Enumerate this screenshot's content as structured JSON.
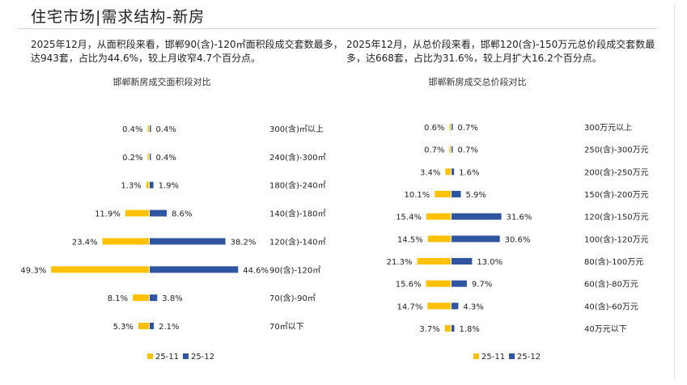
{
  "header": {
    "title": "住宅市场|需求结构-新房"
  },
  "colors": {
    "prev_month": "#FFC000",
    "curr_month": "#2F54A0"
  },
  "summaries": {
    "area": "2025年12月，从面积段来看，邯郸90(含)-120㎡面积段成交套数最多，达943套，占比为44.6%，较上月收窄4.7个百分点。",
    "price": "2025年12月，从总价段来看，邯郸120(含)-150万元总价段成交套数最多，达668套，占比为31.6%，较上月扩大16.2个百分点。"
  },
  "chart_data": [
    {
      "type": "bar",
      "orientation": "horizontal-butterfly",
      "title": "邯郸新房成交面积段对比",
      "categories": [
        "300(含)㎡以上",
        "240(含)-300㎡",
        "180(含)-240㎡",
        "140(含)-180㎡",
        "120(含)-140㎡",
        "90(含)-120㎡",
        "70(含)-90㎡",
        "70㎡以下"
      ],
      "series": [
        {
          "name": "25-11",
          "values": [
            0.4,
            0.2,
            1.3,
            11.9,
            23.4,
            49.3,
            8.1,
            5.3
          ],
          "labels": [
            "0.4%",
            "0.2%",
            "1.3%",
            "11.9%",
            "23.4%",
            "49.3%",
            "8.1%",
            "5.3%"
          ]
        },
        {
          "name": "25-12",
          "values": [
            0.4,
            0.4,
            1.9,
            8.6,
            38.2,
            44.6,
            3.8,
            2.1
          ],
          "labels": [
            "0.4%",
            "0.4%",
            "1.9%",
            "8.6%",
            "38.2%",
            "44.6%",
            "3.8%",
            "2.1%"
          ]
        }
      ],
      "unit": "%",
      "legend": "bottom-center",
      "grid": false
    },
    {
      "type": "bar",
      "orientation": "horizontal-butterfly",
      "title": "邯郸新房成交总价段对比",
      "categories": [
        "300万元以上",
        "250(含)-300万元",
        "200(含)-250万元",
        "150(含)-200万元",
        "120(含)-150万元",
        "100(含)-120万元",
        "80(含)-100万元",
        "60(含)-80万元",
        "40(含)-60万元",
        "40万元以下"
      ],
      "series": [
        {
          "name": "25-11",
          "values": [
            0.6,
            0.7,
            3.4,
            10.1,
            15.4,
            14.5,
            21.3,
            15.6,
            14.7,
            3.7
          ],
          "labels": [
            "0.6%",
            "0.7%",
            "3.4%",
            "10.1%",
            "15.4%",
            "14.5%",
            "21.3%",
            "15.6%",
            "14.7%",
            "3.7%"
          ]
        },
        {
          "name": "25-12",
          "values": [
            0.7,
            0.7,
            1.6,
            5.9,
            31.6,
            30.6,
            13.0,
            9.7,
            4.3,
            1.8
          ],
          "labels": [
            "0.7%",
            "0.7%",
            "1.6%",
            "5.9%",
            "31.6%",
            "30.6%",
            "13.0%",
            "9.7%",
            "4.3%",
            "1.8%"
          ]
        }
      ],
      "unit": "%",
      "legend": "bottom-center",
      "grid": false
    }
  ]
}
